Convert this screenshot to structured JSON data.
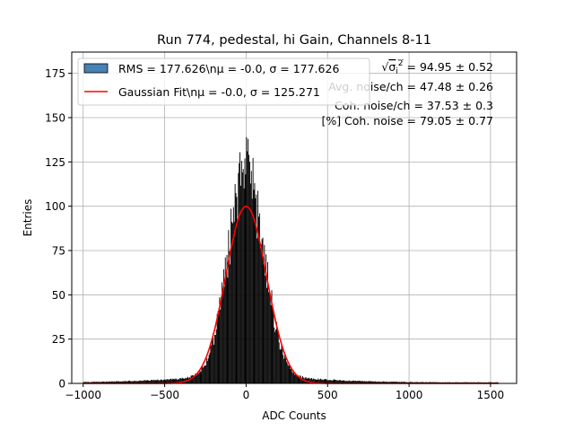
{
  "chart_data": {
    "type": "histogram",
    "title": "Run 774, pedestal, hi Gain, Channels 8-11",
    "xlabel": "ADC Counts",
    "ylabel": "Entries",
    "xlim": [
      -1070,
      1660
    ],
    "ylim": [
      0,
      187
    ],
    "xticks": [
      -1000,
      -500,
      0,
      500,
      1000,
      1500
    ],
    "xtick_labels": [
      "−1000",
      "−500",
      "0",
      "500",
      "1000",
      "1500"
    ],
    "yticks": [
      0,
      25,
      50,
      75,
      100,
      125,
      150,
      175
    ],
    "ytick_labels": [
      "0",
      "25",
      "50",
      "75",
      "100",
      "125",
      "150",
      "175"
    ],
    "grid": true,
    "legend_position": "top-left",
    "colors": {
      "histogram": "#000000",
      "legend_patch": "#4682b4",
      "fit": "#ff0000",
      "grid": "#b0b0b0"
    },
    "series": [
      {
        "name": "RMS = 177.626\\nμ = -0.0, σ = 177.626",
        "kind": "histogram",
        "bin_width": 5,
        "x_range": [
          -1000,
          1550
        ],
        "core_mu": 0,
        "core_sigma": 110,
        "core_peak": 115,
        "tail_sigma": 420,
        "tail_level": 3,
        "peak_values": [
          [
            -5,
            118
          ],
          [
            0,
            139
          ],
          [
            5,
            131
          ],
          [
            10,
            138
          ],
          [
            -10,
            127
          ],
          [
            15,
            129
          ],
          [
            20,
            125
          ],
          [
            -20,
            121
          ]
        ]
      },
      {
        "name": "Gaussian Fit\\nμ = -0.0, σ = 125.271",
        "kind": "line",
        "mu": 0,
        "sigma": 125.271,
        "amplitude": 100,
        "x_range": [
          -1000,
          1550
        ]
      }
    ],
    "annotations": [
      {
        "text": "√σᵢ² = 94.95 ± 0.52"
      },
      {
        "text": "Avg. noise/ch = 47.48 ± 0.26"
      },
      {
        "text": "Coh. noise/ch = 37.53 ± 0.3"
      },
      {
        "text": "[%] Coh. noise = 79.05 ± 0.77"
      }
    ]
  }
}
